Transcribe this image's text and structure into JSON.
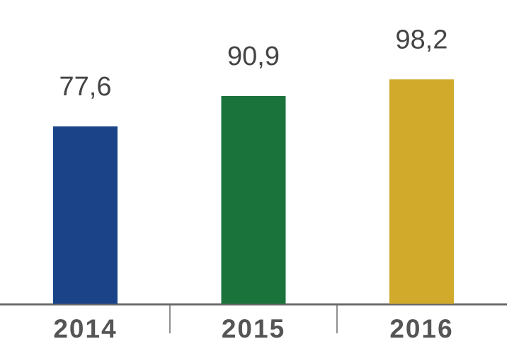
{
  "chart_data": {
    "type": "bar",
    "categories": [
      "2014",
      "2015",
      "2016"
    ],
    "values": [
      77.6,
      90.9,
      98.2
    ],
    "value_labels": [
      "77,6",
      "90,9",
      "98,2"
    ],
    "colors": [
      "#1b4488",
      "#1b733c",
      "#d1aa2c"
    ]
  }
}
